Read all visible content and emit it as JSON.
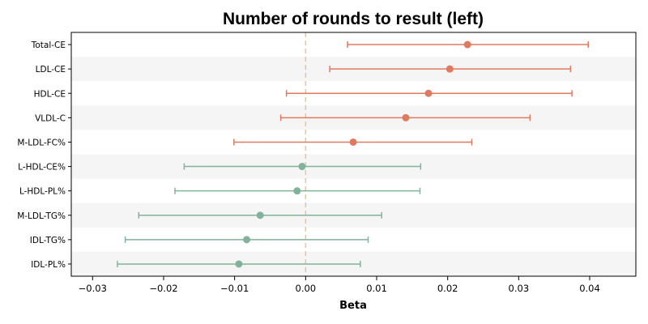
{
  "colors": {
    "positive": "#e07a5f",
    "negative": "#81b29a",
    "zero_line": "#f2c28c",
    "band": "#f5f5f5"
  },
  "chart_data": {
    "type": "forest",
    "title": "Number of rounds to result (left)",
    "xlabel": "Beta",
    "ylabel": "",
    "xlim": [
      -0.033,
      0.0465
    ],
    "xticks": [
      -0.03,
      -0.02,
      -0.01,
      0.0,
      0.01,
      0.02,
      0.03,
      0.04
    ],
    "xtick_labels": [
      "−0.03",
      "−0.02",
      "−0.01",
      "0.00",
      "0.01",
      "0.02",
      "0.03",
      "0.04"
    ],
    "reference_line": 0,
    "grid": false,
    "alternating_row_bands": true,
    "categories": [
      "Total-CE",
      "LDL-CE",
      "HDL-CE",
      "VLDL-C",
      "M-LDL-FC%",
      "L-HDL-CE%",
      "L-HDL-PL%",
      "M-LDL-TG%",
      "IDL-TG%",
      "IDL-PL%"
    ],
    "estimates": [
      0.0228,
      0.0203,
      0.0173,
      0.0141,
      0.0067,
      -0.0005,
      -0.0012,
      -0.0064,
      -0.0083,
      -0.0094
    ],
    "ci_lower": [
      0.0059,
      0.0034,
      -0.0027,
      -0.0035,
      -0.0101,
      -0.0171,
      -0.0184,
      -0.0235,
      -0.0254,
      -0.0265
    ],
    "ci_upper": [
      0.0398,
      0.0373,
      0.0375,
      0.0316,
      0.0234,
      0.0162,
      0.0161,
      0.0107,
      0.0088,
      0.0077
    ]
  }
}
